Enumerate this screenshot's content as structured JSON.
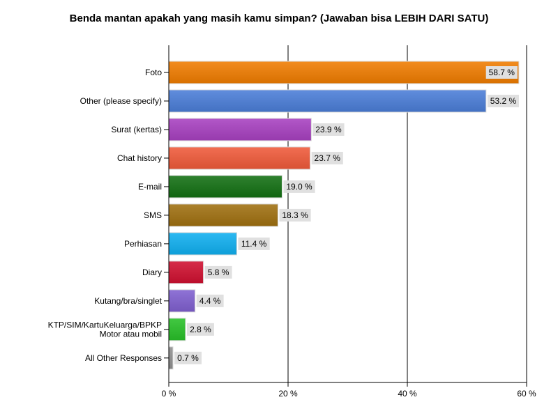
{
  "chart_data": {
    "type": "bar",
    "orientation": "horizontal",
    "title": "Benda mantan apakah yang masih kamu simpan? (Jawaban bisa LEBIH DARI SATU)",
    "xlabel": "",
    "ylabel": "",
    "xlim": [
      0,
      60
    ],
    "x_ticks": [
      0,
      20,
      40,
      60
    ],
    "x_tick_labels": [
      "0 %",
      "20 %",
      "40 %",
      "60 %"
    ],
    "grid": "vertical",
    "categories": [
      "Foto",
      "Other (please specify)",
      "Surat (kertas)",
      "Chat history",
      "E-mail",
      "SMS",
      "Perhiasan",
      "Diary",
      "Kutang/bra/singlet",
      "KTP/SIM/KartuKeluarga/BPKP\nMotor atau mobil",
      "All Other Responses"
    ],
    "values": [
      58.7,
      53.2,
      23.9,
      23.7,
      19.0,
      18.3,
      11.4,
      5.8,
      4.4,
      2.8,
      0.7
    ],
    "data_labels": [
      "58.7 %",
      "53.2 %",
      "23.9 %",
      "23.7 %",
      "19.0 %",
      "18.3 %",
      "11.4 %",
      "5.8 %",
      "4.4 %",
      "2.8 %",
      "0.7 %"
    ],
    "colors": [
      "#f07c00",
      "#4a7ed8",
      "#a840c0",
      "#f05a3a",
      "#137013",
      "#a07010",
      "#10b0f0",
      "#d01030",
      "#8060d0",
      "#28c028",
      "#909090"
    ]
  }
}
